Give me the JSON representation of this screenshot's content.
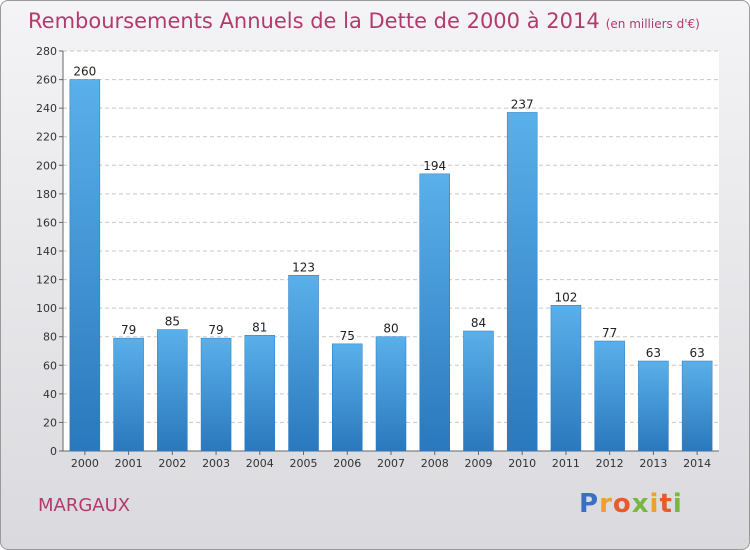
{
  "chart_data": {
    "type": "bar",
    "title": "Remboursements Annuels de la Dette de 2000 à 2014",
    "unit_note": "(en milliers d'€)",
    "categories": [
      "2000",
      "2001",
      "2002",
      "2003",
      "2004",
      "2005",
      "2006",
      "2007",
      "2008",
      "2009",
      "2010",
      "2011",
      "2012",
      "2013",
      "2014"
    ],
    "values": [
      260,
      79,
      85,
      79,
      81,
      123,
      75,
      80,
      194,
      84,
      237,
      102,
      77,
      63,
      63
    ],
    "ylim": [
      0,
      280
    ],
    "yticks": [
      0,
      20,
      40,
      60,
      80,
      100,
      120,
      140,
      160,
      180,
      200,
      220,
      240,
      260,
      280
    ],
    "grid": true,
    "bar_color": "#3a96d8"
  },
  "location_label": "MARGAUX",
  "brand": {
    "letters": [
      "P",
      "r",
      "o",
      "x",
      "i",
      "t",
      "i"
    ],
    "colors": [
      "#3b6fc4",
      "#f0a024",
      "#e85a2a",
      "#79b840",
      "#f0a024",
      "#e85a2a",
      "#79b840"
    ]
  }
}
